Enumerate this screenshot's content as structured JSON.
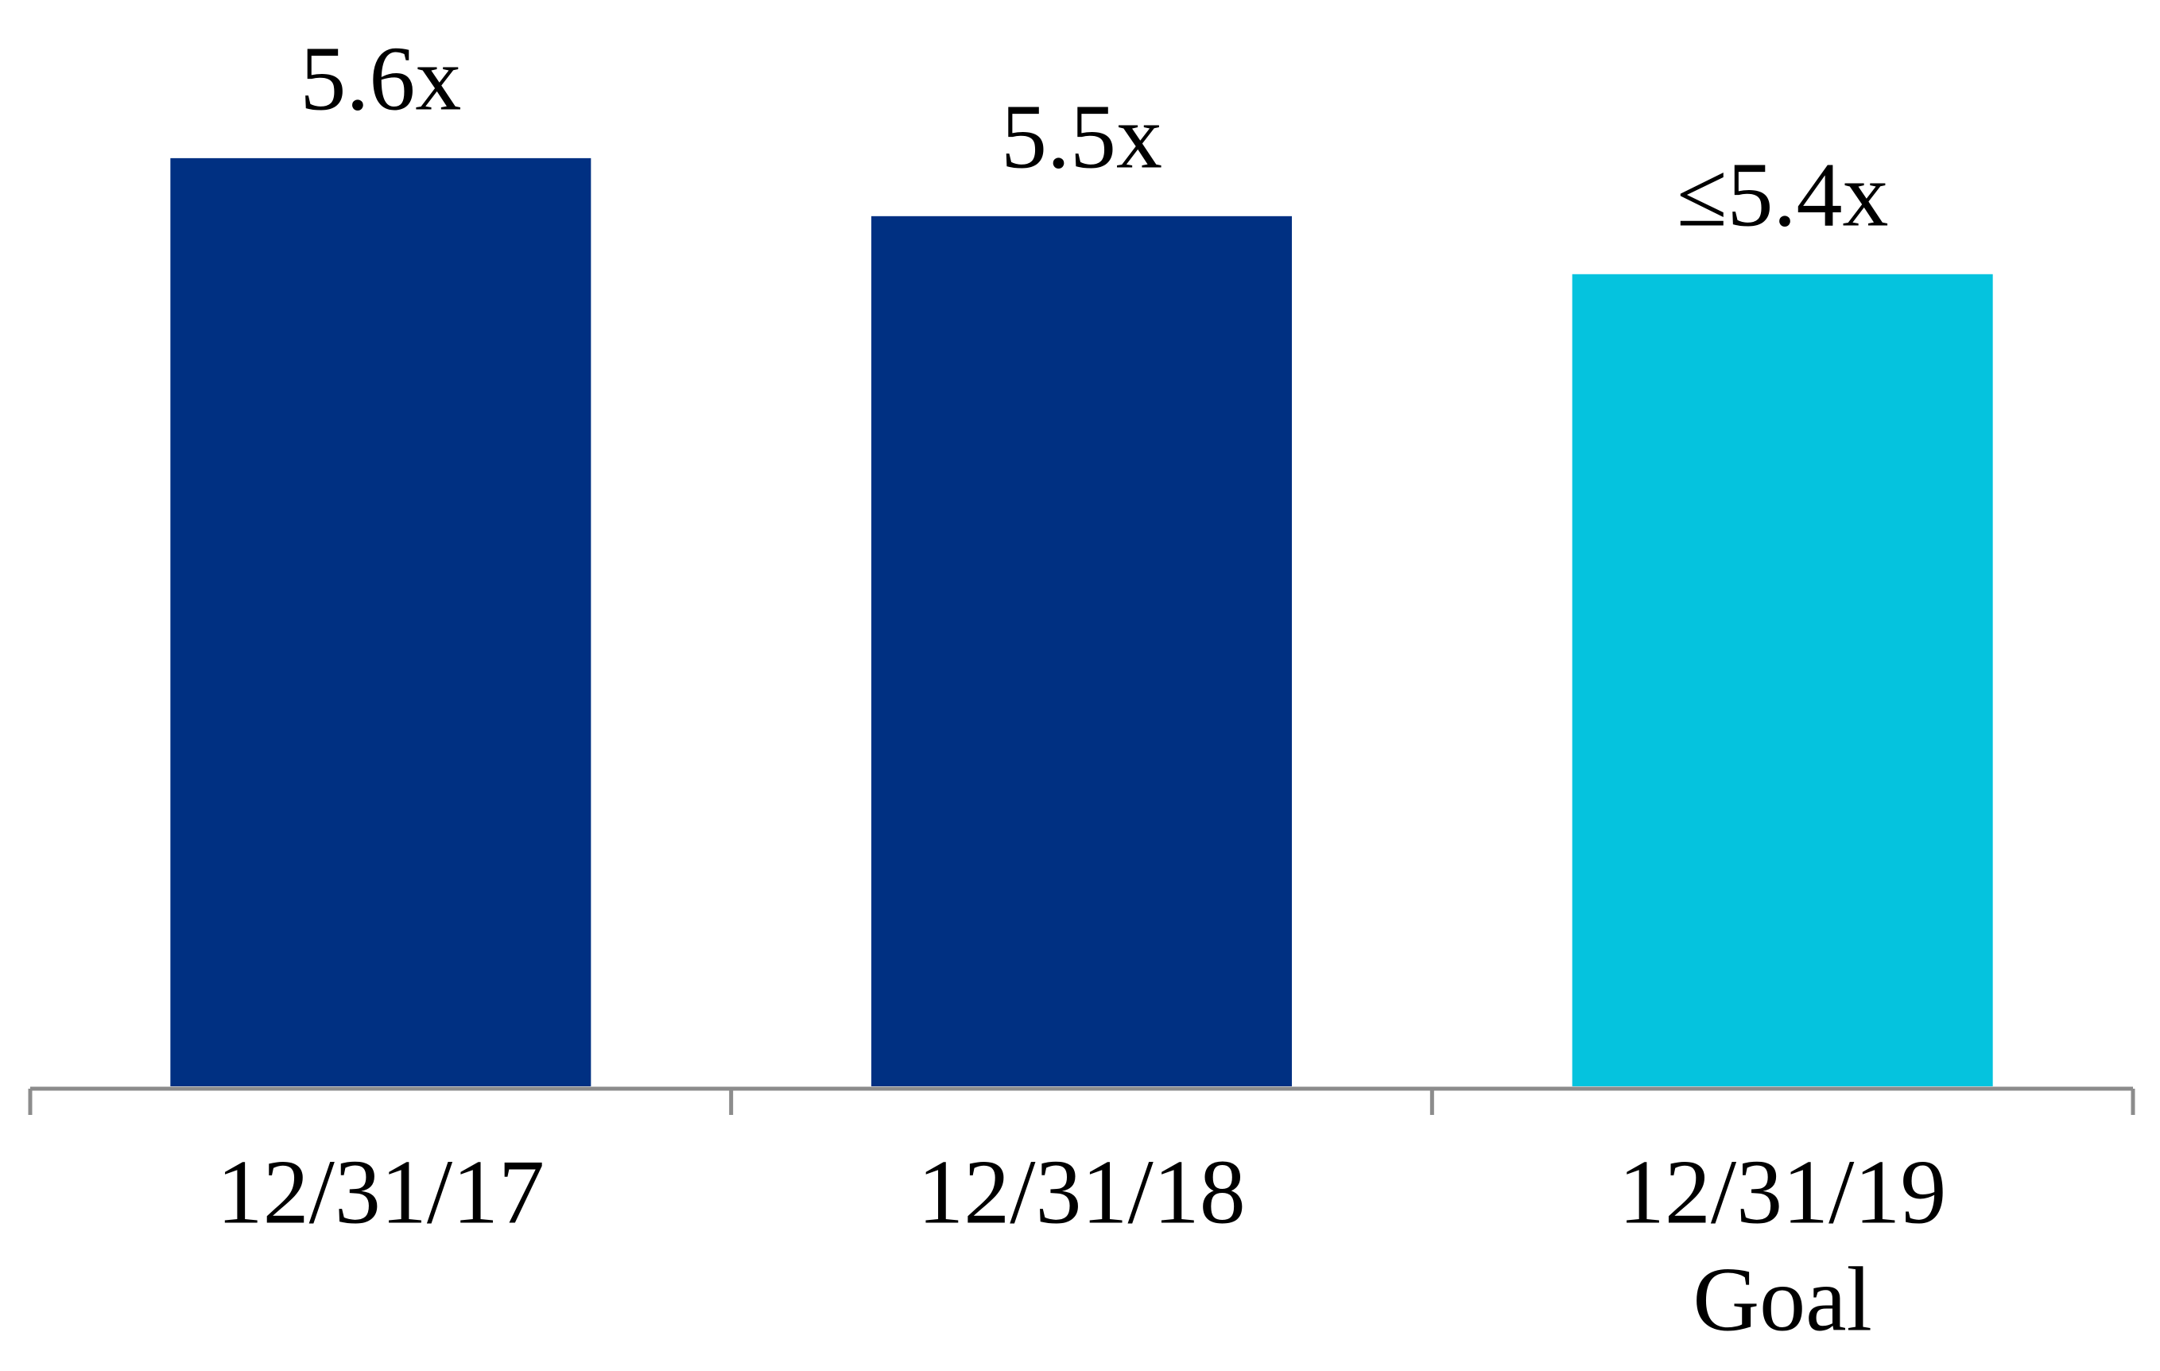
{
  "chart_data": {
    "type": "bar",
    "categories": [
      [
        "12/31/17"
      ],
      [
        "12/31/18"
      ],
      [
        "12/31/19",
        "Goal"
      ]
    ],
    "values": [
      5.6,
      5.5,
      5.4
    ],
    "value_labels": [
      "5.6x",
      "5.5x",
      "≤5.4x"
    ],
    "colors": [
      "#003082",
      "#003082",
      "#05c3de"
    ],
    "ylim": [
      4,
      5.8
    ]
  }
}
